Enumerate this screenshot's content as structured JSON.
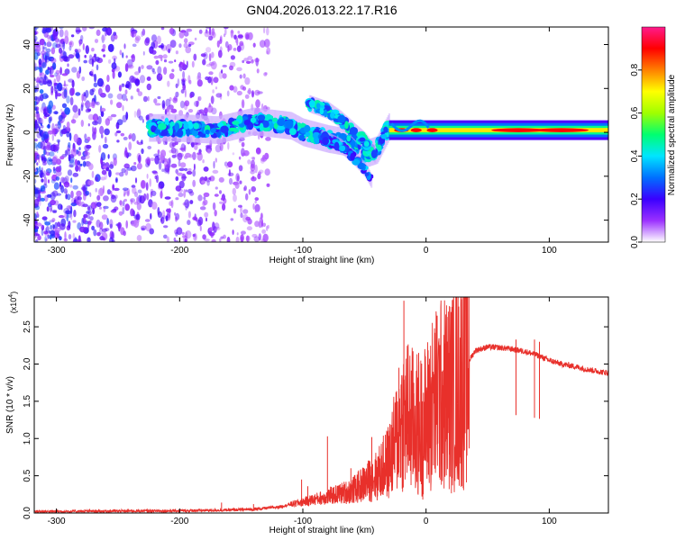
{
  "title": "GN04.2026.013.22.17.R16",
  "chart_data": [
    {
      "type": "heatmap",
      "xlabel": "Height of straight line (km)",
      "ylabel": "Frequency (Hz)",
      "xlim": [
        -318,
        148
      ],
      "ylim": [
        -50,
        48
      ],
      "xticks": [
        -300,
        -200,
        -100,
        0,
        100
      ],
      "xtick_labels": [
        "-300",
        "-200",
        "-100",
        "0",
        "100"
      ],
      "yticks": [
        -40,
        -20,
        0,
        20,
        40
      ],
      "ytick_labels": [
        "-40",
        "-20",
        "0",
        "20",
        "40"
      ],
      "colorbar": {
        "label": "Normalized spectral amplitude",
        "range": [
          0,
          1
        ],
        "ticks": [
          0.0,
          0.2,
          0.4,
          0.6,
          0.8
        ],
        "tick_labels": [
          "0.0",
          "0.2",
          "0.4",
          "0.6",
          "0.8"
        ],
        "colors": [
          "#ffffff",
          "#9b30ff",
          "#3a00ff",
          "#0070ff",
          "#00e5ff",
          "#00ff70",
          "#a0ff00",
          "#ffff00",
          "#ff8000",
          "#ff0000",
          "#ff1a8c"
        ]
      },
      "features": {
        "main_band": [
          [
            -225,
            2
          ],
          [
            -200,
            2
          ],
          [
            -170,
            1
          ],
          [
            -140,
            5
          ],
          [
            -110,
            3
          ],
          [
            -100,
            0
          ],
          [
            -80,
            -3
          ],
          [
            -60,
            -5
          ],
          [
            -50,
            -10
          ],
          [
            -40,
            -8
          ],
          [
            -30,
            3
          ],
          [
            0,
            1
          ],
          [
            40,
            1
          ],
          [
            80,
            1
          ],
          [
            148,
            1
          ]
        ],
        "upper_branch": [
          [
            -95,
            13
          ],
          [
            -80,
            10
          ],
          [
            -70,
            6
          ],
          [
            -60,
            1
          ],
          [
            -50,
            -4
          ],
          [
            -42,
            -10
          ]
        ],
        "lower_branch": [
          [
            -85,
            -2
          ],
          [
            -70,
            -6
          ],
          [
            -60,
            -11
          ],
          [
            -50,
            -17
          ],
          [
            -45,
            -22
          ]
        ]
      }
    },
    {
      "type": "line",
      "xlabel": "Height of straight line (km)",
      "ylabel": "SNR (10 * v/v)",
      "y_multiplier": "(x10",
      "y_multiplier_exp": "4",
      "y_multiplier_close": ")",
      "xlim": [
        -318,
        148
      ],
      "ylim": [
        0,
        2.9
      ],
      "xticks": [
        -300,
        -200,
        -100,
        0,
        100
      ],
      "xtick_labels": [
        "-300",
        "-200",
        "-100",
        "0",
        "100"
      ],
      "yticks": [
        0,
        0.5,
        1.0,
        1.5,
        2.0,
        2.5
      ],
      "ytick_labels": [
        "0.0",
        "0.5",
        "1.0",
        "1.5",
        "2.0",
        "2.5"
      ],
      "color": "#e8302b",
      "envelope_x": [
        -318,
        -200,
        -160,
        -140,
        -120,
        -100,
        -80,
        -60,
        -50,
        -40,
        -30,
        -25,
        -20,
        -15,
        -10,
        -5,
        0,
        5,
        10,
        15,
        20,
        25,
        30,
        35,
        40,
        50,
        60,
        70,
        80,
        90,
        100,
        110,
        120,
        130,
        140,
        148
      ],
      "envelope_y": [
        0.02,
        0.03,
        0.04,
        0.05,
        0.08,
        0.15,
        0.22,
        0.3,
        0.4,
        0.5,
        0.7,
        0.95,
        1.25,
        1.3,
        1.2,
        1.15,
        1.25,
        1.45,
        1.55,
        1.6,
        1.6,
        1.7,
        1.85,
        2.05,
        2.18,
        2.23,
        2.22,
        2.2,
        2.17,
        2.12,
        2.05,
        2.0,
        1.97,
        1.93,
        1.9,
        1.88
      ],
      "spikes": [
        [
          -166,
          0.14
        ],
        [
          -140,
          0.12
        ],
        [
          -101,
          0.45
        ],
        [
          -96,
          0.36
        ],
        [
          -80,
          1.03
        ],
        [
          -61,
          0.6
        ],
        [
          -44,
          1.02
        ],
        [
          -33,
          1.05
        ],
        [
          -22,
          1.95
        ],
        [
          -18,
          2.85
        ],
        [
          -15,
          1.72
        ],
        [
          -10,
          1.75
        ],
        [
          -6,
          2.15
        ],
        [
          -3,
          1.5
        ],
        [
          9,
          2.65
        ],
        [
          13,
          1.9
        ],
        [
          16,
          1.65
        ],
        [
          73,
          2.33
        ],
        [
          88,
          2.33
        ],
        [
          92,
          2.3
        ]
      ]
    }
  ]
}
